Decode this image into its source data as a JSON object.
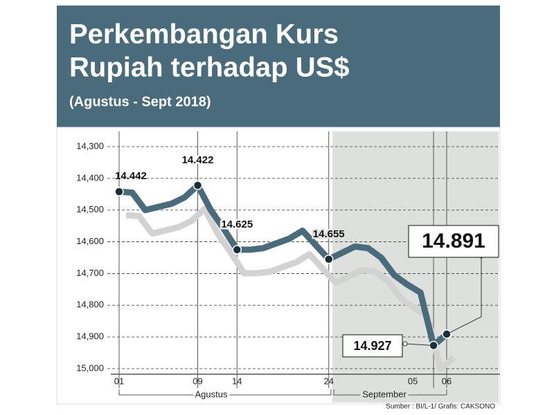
{
  "chart_data": {
    "type": "line",
    "title_lines": [
      "Perkembangan Kurs",
      "Rupiah terhadap US$"
    ],
    "subtitle": "(Agustus - Sept 2018)",
    "categories": [
      "01",
      null,
      null,
      null,
      null,
      null,
      "09",
      null,
      null,
      "14",
      null,
      null,
      null,
      null,
      null,
      null,
      "24",
      null,
      null,
      null,
      null,
      null,
      null,
      null,
      "05",
      "06"
    ],
    "month_labels": [
      "Agustus",
      "September"
    ],
    "series": [
      {
        "color": "#4a6b7c",
        "values": [
          14442,
          14445,
          14500,
          14490,
          14480,
          14460,
          14422,
          14500,
          14560,
          14625,
          14625,
          14620,
          14605,
          14590,
          14565,
          14610,
          14655,
          14635,
          14615,
          14620,
          14650,
          14705,
          14735,
          14760,
          14927,
          14891
        ],
        "value_labels": [
          "14.442",
          null,
          null,
          null,
          null,
          null,
          "14.422",
          null,
          null,
          "14.625",
          null,
          null,
          null,
          null,
          null,
          null,
          "14.655",
          null,
          null,
          null,
          null,
          null,
          null,
          null,
          "14.927",
          "14.891"
        ]
      }
    ],
    "ylim": [
      14300,
      15000
    ],
    "y_inverted": true,
    "yticks": [
      {
        "value": 14300,
        "label": "14,300"
      },
      {
        "value": 14400,
        "label": "14,400"
      },
      {
        "value": 14500,
        "label": "14,500"
      },
      {
        "value": 14600,
        "label": "14,600"
      },
      {
        "value": 14700,
        "label": "14,700"
      },
      {
        "value": 14800,
        "label": "14,800"
      },
      {
        "value": 14900,
        "label": "14,900"
      },
      {
        "value": 15000,
        "label": "15,000"
      }
    ],
    "grid": true,
    "source": "Sumber : BI/L-1/ Grafis: CAKSONO"
  }
}
